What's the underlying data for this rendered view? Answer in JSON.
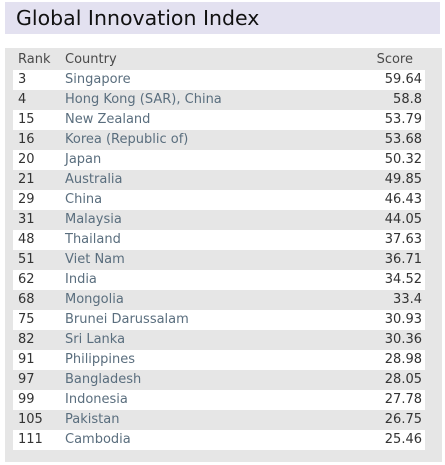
{
  "title": "Global Innovation Index",
  "table": {
    "headers": {
      "rank": "Rank",
      "country": "Country",
      "score": "Score"
    },
    "rows": [
      {
        "rank": "3",
        "country": "Singapore",
        "score": "59.64"
      },
      {
        "rank": "4",
        "country": "Hong Kong (SAR), China",
        "score": "58.8"
      },
      {
        "rank": "15",
        "country": "New Zealand",
        "score": "53.79"
      },
      {
        "rank": "16",
        "country": "Korea (Republic of)",
        "score": "53.68"
      },
      {
        "rank": "20",
        "country": "Japan",
        "score": "50.32"
      },
      {
        "rank": "21",
        "country": "Australia",
        "score": "49.85"
      },
      {
        "rank": "29",
        "country": "China",
        "score": "46.43"
      },
      {
        "rank": "31",
        "country": "Malaysia",
        "score": "44.05"
      },
      {
        "rank": "48",
        "country": "Thailand",
        "score": "37.63"
      },
      {
        "rank": "51",
        "country": "Viet Nam",
        "score": "36.71"
      },
      {
        "rank": "62",
        "country": "India",
        "score": "34.52"
      },
      {
        "rank": "68",
        "country": "Mongolia",
        "score": "33.4"
      },
      {
        "rank": "75",
        "country": "Brunei Darussalam",
        "score": "30.93"
      },
      {
        "rank": "82",
        "country": "Sri Lanka",
        "score": "30.36"
      },
      {
        "rank": "91",
        "country": "Philippines",
        "score": "28.98"
      },
      {
        "rank": "97",
        "country": "Bangladesh",
        "score": "28.05"
      },
      {
        "rank": "99",
        "country": "Indonesia",
        "score": "27.78"
      },
      {
        "rank": "105",
        "country": "Pakistan",
        "score": "26.75"
      },
      {
        "rank": "111",
        "country": "Cambodia",
        "score": "25.46"
      }
    ]
  }
}
